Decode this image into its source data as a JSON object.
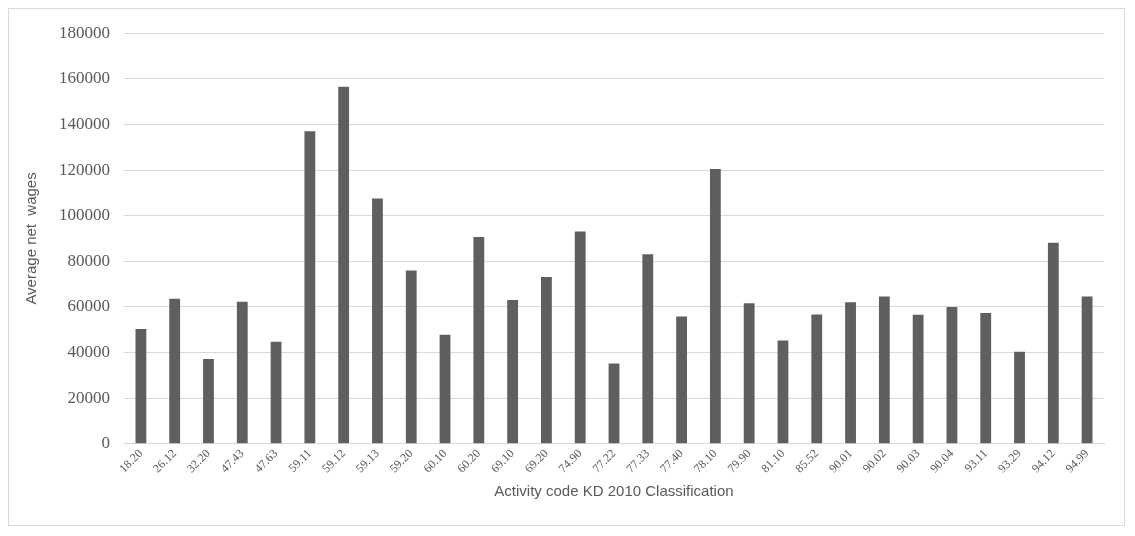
{
  "chart_data": {
    "type": "bar",
    "xlabel": "Activity code KD 2010 Classification",
    "ylabel": "Average net  wages",
    "categories": [
      "18.20",
      "26.12",
      "32.20",
      "47.43",
      "47.63",
      "59.11",
      "59.12",
      "59.13",
      "59.20",
      "60.10",
      "60.20",
      "69.10",
      "69.20",
      "74.90",
      "77.22",
      "77.33",
      "77.40",
      "78.10",
      "79.90",
      "81.10",
      "85.52",
      "90.01",
      "90.02",
      "90.03",
      "90.04",
      "93.11",
      "93.29",
      "94.12",
      "94.99"
    ],
    "values": [
      50300,
      63600,
      37200,
      62200,
      44700,
      137000,
      156500,
      107500,
      75900,
      47800,
      90600,
      63000,
      73100,
      93100,
      35200,
      83100,
      55800,
      120500,
      61600,
      45300,
      56700,
      62000,
      64500,
      56600,
      60000,
      57300,
      40300,
      88100,
      64500
    ],
    "color": "#5f5f5f",
    "ylim": [
      0,
      180000
    ],
    "yticks": [
      0,
      20000,
      40000,
      60000,
      80000,
      100000,
      120000,
      140000,
      160000,
      180000
    ],
    "grid": "y",
    "legend": false
  }
}
